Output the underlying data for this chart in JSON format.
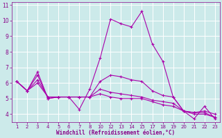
{
  "background_color": "#cceaea",
  "grid_color": "#ffffff",
  "line_color": "#aa00aa",
  "marker": "+",
  "xlabel": "Windchill (Refroidissement éolien,°C)",
  "xlabel_color": "#880088",
  "tick_color": "#880088",
  "ylim": [
    3.5,
    11.2
  ],
  "yticks": [
    4,
    5,
    6,
    7,
    8,
    9,
    10,
    11
  ],
  "xlabels": [
    "1",
    "2",
    "3",
    "4",
    "5",
    "6",
    "7",
    "8",
    "10",
    "12",
    "13",
    "14",
    "15",
    "17",
    "18",
    "19",
    "20",
    "21",
    "22",
    "23"
  ],
  "series": [
    {
      "y": [
        6.1,
        5.5,
        6.7,
        5.0,
        5.1,
        5.1,
        4.3,
        5.6,
        7.6,
        10.1,
        9.8,
        9.6,
        10.6,
        8.5,
        7.4,
        5.1,
        4.2,
        3.7,
        4.5,
        3.7
      ]
    },
    {
      "y": [
        6.1,
        5.5,
        6.5,
        5.0,
        5.1,
        5.1,
        5.1,
        5.1,
        6.1,
        6.5,
        6.4,
        6.2,
        6.1,
        5.5,
        5.2,
        5.1,
        4.2,
        4.1,
        4.2,
        4.0
      ]
    },
    {
      "y": [
        6.1,
        5.5,
        6.2,
        5.1,
        5.1,
        5.1,
        5.1,
        5.1,
        5.6,
        5.4,
        5.3,
        5.2,
        5.1,
        4.9,
        4.8,
        4.7,
        4.2,
        4.1,
        4.1,
        3.8
      ]
    },
    {
      "y": [
        6.1,
        5.5,
        6.0,
        5.1,
        5.1,
        5.1,
        5.1,
        5.1,
        5.3,
        5.1,
        5.0,
        5.0,
        5.0,
        4.8,
        4.6,
        4.5,
        4.2,
        4.0,
        4.0,
        3.8
      ]
    }
  ]
}
